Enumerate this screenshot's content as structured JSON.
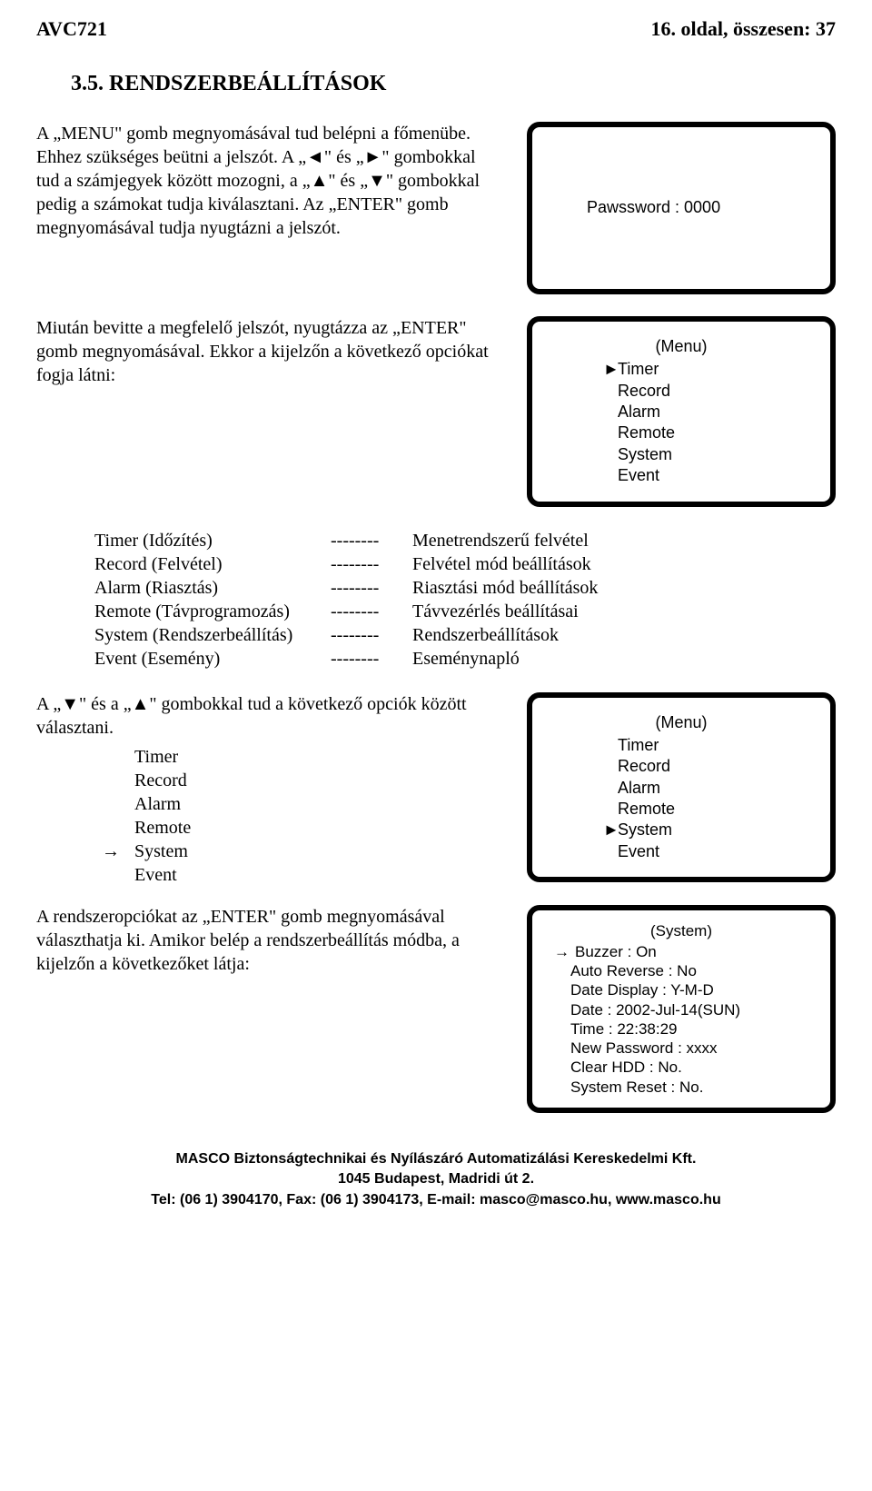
{
  "header": {
    "doc_id": "AVC721",
    "page_label": "16. oldal, összesen: 37"
  },
  "section_title": "3.5.    RENDSZERBEÁLLÍTÁSOK",
  "para1_a": "A „MENU\" gomb megnyomásával tud belépni a főmenübe. Ehhez szükséges beütni a jelszót. A „◄\" és „►\" gombokkal tud a számjegyek között mozogni, a „▲\" és „▼\" gombokkal pedig a számokat tudja kiválasztani. Az „ENTER\" gomb megnyomásával tudja nyugtázni a jelszót.",
  "box1_text": "Pawssword : 0000",
  "para2": "Miután bevitte a megfelelő jelszót, nyugtázza az „ENTER\" gomb megnyomásával. Ekkor a kijelzőn a következő opciókat fogja látni:",
  "box2": {
    "title": "(Menu)",
    "items": [
      "Timer",
      "Record",
      "Alarm",
      "Remote",
      "System",
      "Event"
    ],
    "selected_index": 0
  },
  "desc": [
    {
      "k": "Timer (Időzítés)",
      "v": "Menetrendszerű felvétel"
    },
    {
      "k": "Record (Felvétel)",
      "v": "Felvétel mód beállítások"
    },
    {
      "k": "Alarm (Riasztás)",
      "v": "Riasztási mód beállítások"
    },
    {
      "k": "Remote (Távprogramozás)",
      "v": "Távvezérlés beállításai"
    },
    {
      "k": "System (Rendszerbeállítás)",
      "v": "Rendszerbeállítások"
    },
    {
      "k": "Event (Esemény)",
      "v": "Eseménynapló"
    }
  ],
  "dash_str": "--------",
  "para3": "A „▼\" és a „▲\" gombokkal tud a következő opciók között választani.",
  "options_list": [
    "Timer",
    "Record",
    "Alarm",
    "Remote",
    "System",
    "Event"
  ],
  "options_arrow_index": 4,
  "arrow_right": "→",
  "box3": {
    "title": "(Menu)",
    "items": [
      "Timer",
      "Record",
      "Alarm",
      "Remote",
      "System",
      "Event"
    ],
    "selected_index": 4
  },
  "para4": "A rendszeropciókat az „ENTER\" gomb megnyomásával választhatja ki. Amikor belép a rendszerbeállítás módba, a kijelzőn a következőket látja:",
  "box4": {
    "title": "(System)",
    "lines": [
      "Buzzer : On",
      "Auto Reverse : No",
      "Date Display : Y-M-D",
      "Date : 2002-Jul-14(SUN)",
      "Time : 22:38:29",
      "New Password : xxxx",
      "Clear HDD : No.",
      "System Reset : No."
    ],
    "arrow_index": 0
  },
  "footer": {
    "l1": "MASCO Biztonságtechnikai és Nyílászáró Automatizálási Kereskedelmi Kft.",
    "l2": "1045 Budapest, Madridi út 2.",
    "l3": "Tel: (06 1) 3904170, Fax: (06 1) 3904173, E-mail: masco@masco.hu, www.masco.hu"
  },
  "marker_glyph": "►"
}
